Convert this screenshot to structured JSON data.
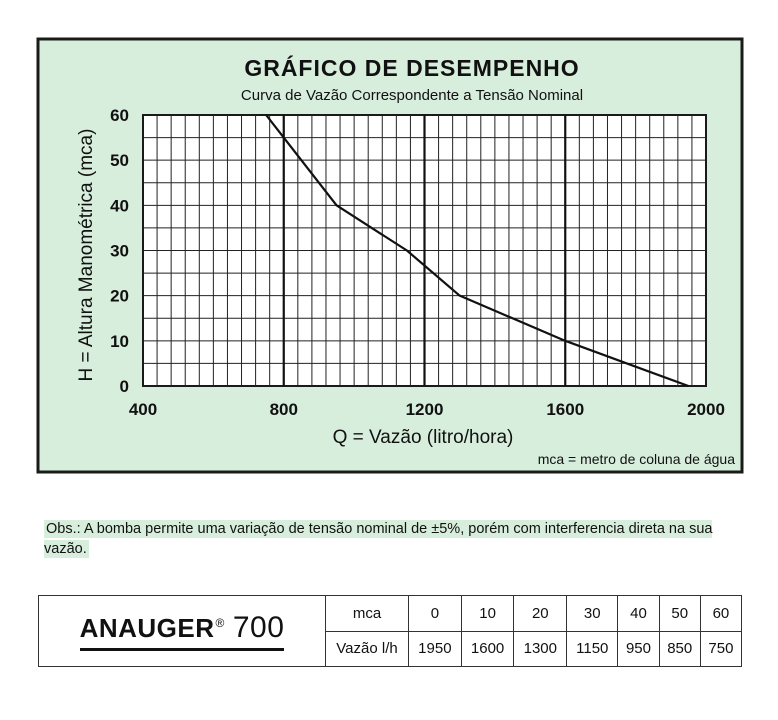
{
  "chart_data": {
    "type": "line",
    "title": "GRÁFICO DE DESEMPENHO",
    "subtitle": "Curva de Vazão Correspondente a Tensão Nominal",
    "xlabel": "Q = Vazão (litro/hora)",
    "ylabel": "H = Altura Manométrica (mca)",
    "note": "mca = metro de coluna de água",
    "xlim": [
      400,
      2000
    ],
    "ylim": [
      0,
      60
    ],
    "x_ticks": [
      "400",
      "800",
      "1200",
      "1600",
      "2000"
    ],
    "y_ticks": [
      "0",
      "10",
      "20",
      "30",
      "40",
      "50",
      "60"
    ],
    "grid": true,
    "background": "#d8eedc",
    "series": [
      {
        "x": [
          750,
          850,
          950,
          1150,
          1300,
          1600,
          1950
        ],
        "y": [
          60,
          50,
          40,
          30,
          20,
          10,
          0
        ]
      }
    ]
  },
  "obs": "Obs.: A bomba permite uma variação de tensão nominal de ±5%, porém com interferencia direta na sua vazão.",
  "spec": {
    "brand": "ANAUGER",
    "reg": "®",
    "model": "700",
    "row_mca_label": "mca",
    "row_vazao_label": "Vazão l/h",
    "mca": [
      "0",
      "10",
      "20",
      "30",
      "40",
      "50",
      "60"
    ],
    "vazao": [
      "1950",
      "1600",
      "1300",
      "1150",
      "950",
      "850",
      "750"
    ]
  }
}
